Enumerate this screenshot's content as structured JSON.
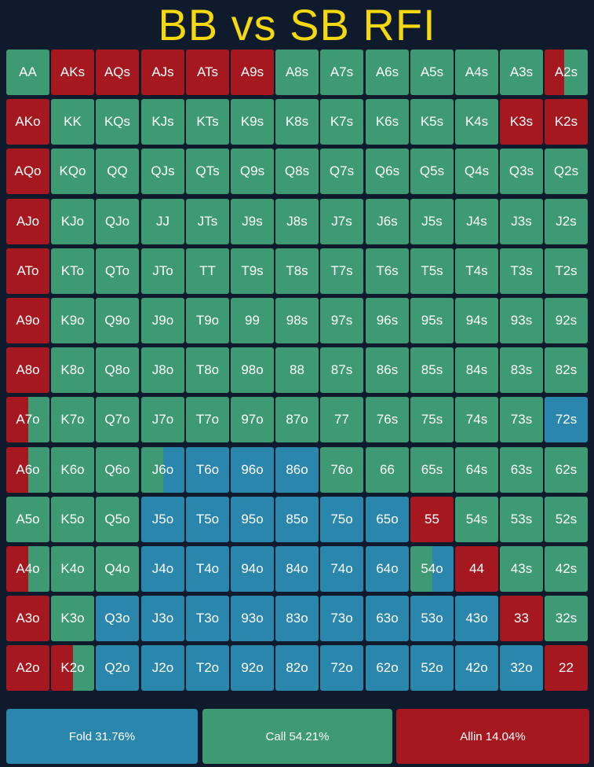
{
  "title": "BB vs SB RFI",
  "colors": {
    "background": "#0f1a2c",
    "title": "#f5d90f",
    "fold": "#2a86ad",
    "call": "#3d9a72",
    "allin": "#a6181f"
  },
  "chart_data": {
    "type": "heatmap",
    "actions": [
      "fold",
      "call",
      "allin"
    ],
    "hands": [
      [
        "AA",
        "AKs",
        "AQs",
        "AJs",
        "ATs",
        "A9s",
        "A8s",
        "A7s",
        "A6s",
        "A5s",
        "A4s",
        "A3s",
        "A2s"
      ],
      [
        "AKo",
        "KK",
        "KQs",
        "KJs",
        "KTs",
        "K9s",
        "K8s",
        "K7s",
        "K6s",
        "K5s",
        "K4s",
        "K3s",
        "K2s"
      ],
      [
        "AQo",
        "KQo",
        "QQ",
        "QJs",
        "QTs",
        "Q9s",
        "Q8s",
        "Q7s",
        "Q6s",
        "Q5s",
        "Q4s",
        "Q3s",
        "Q2s"
      ],
      [
        "AJo",
        "KJo",
        "QJo",
        "JJ",
        "JTs",
        "J9s",
        "J8s",
        "J7s",
        "J6s",
        "J5s",
        "J4s",
        "J3s",
        "J2s"
      ],
      [
        "ATo",
        "KTo",
        "QTo",
        "JTo",
        "TT",
        "T9s",
        "T8s",
        "T7s",
        "T6s",
        "T5s",
        "T4s",
        "T3s",
        "T2s"
      ],
      [
        "A9o",
        "K9o",
        "Q9o",
        "J9o",
        "T9o",
        "99",
        "98s",
        "97s",
        "96s",
        "95s",
        "94s",
        "93s",
        "92s"
      ],
      [
        "A8o",
        "K8o",
        "Q8o",
        "J8o",
        "T8o",
        "98o",
        "88",
        "87s",
        "86s",
        "85s",
        "84s",
        "83s",
        "82s"
      ],
      [
        "A7o",
        "K7o",
        "Q7o",
        "J7o",
        "T7o",
        "97o",
        "87o",
        "77",
        "76s",
        "75s",
        "74s",
        "73s",
        "72s"
      ],
      [
        "A6o",
        "K6o",
        "Q6o",
        "J6o",
        "T6o",
        "96o",
        "86o",
        "76o",
        "66",
        "65s",
        "64s",
        "63s",
        "62s"
      ],
      [
        "A5o",
        "K5o",
        "Q5o",
        "J5o",
        "T5o",
        "95o",
        "85o",
        "75o",
        "65o",
        "55",
        "54s",
        "53s",
        "52s"
      ],
      [
        "A4o",
        "K4o",
        "Q4o",
        "J4o",
        "T4o",
        "94o",
        "84o",
        "74o",
        "64o",
        "54o",
        "44",
        "43s",
        "42s"
      ],
      [
        "A3o",
        "K3o",
        "Q3o",
        "J3o",
        "T3o",
        "93o",
        "83o",
        "73o",
        "63o",
        "53o",
        "43o",
        "33",
        "32s"
      ],
      [
        "A2o",
        "K2o",
        "Q2o",
        "J2o",
        "T2o",
        "92o",
        "82o",
        "72o",
        "62o",
        "52o",
        "42o",
        "32o",
        "22"
      ]
    ],
    "mix_legend": "C = call, A = all-in, F = fold; mixed cells list fractions",
    "grid": [
      [
        "C",
        "A",
        "A",
        "A",
        "A",
        "A",
        "C",
        "C",
        "C",
        "C",
        "C",
        "C",
        {
          "allin": 0.45,
          "call": 0.55
        }
      ],
      [
        "A",
        "C",
        "C",
        "C",
        "C",
        "C",
        "C",
        "C",
        "C",
        "C",
        "C",
        "A",
        "A"
      ],
      [
        "A",
        "C",
        "C",
        "C",
        "C",
        "C",
        "C",
        "C",
        "C",
        "C",
        "C",
        "C",
        "C"
      ],
      [
        "A",
        "C",
        "C",
        "C",
        "C",
        "C",
        "C",
        "C",
        "C",
        "C",
        "C",
        "C",
        "C"
      ],
      [
        "A",
        "C",
        "C",
        "C",
        "C",
        "C",
        "C",
        "C",
        "C",
        "C",
        "C",
        "C",
        "C"
      ],
      [
        "A",
        "C",
        "C",
        "C",
        "C",
        "C",
        "C",
        "C",
        "C",
        "C",
        "C",
        "C",
        "C"
      ],
      [
        "A",
        "C",
        "C",
        "C",
        "C",
        "C",
        "C",
        "C",
        "C",
        "C",
        "C",
        "C",
        "C"
      ],
      [
        {
          "allin": 0.5,
          "call": 0.5
        },
        "C",
        "C",
        "C",
        "C",
        "C",
        "C",
        "C",
        "C",
        "C",
        "C",
        "C",
        "F"
      ],
      [
        {
          "allin": 0.5,
          "call": 0.5
        },
        "C",
        "C",
        {
          "call": 0.5,
          "fold": 0.5
        },
        "F",
        "F",
        "F",
        "C",
        "C",
        "C",
        "C",
        "C",
        "C"
      ],
      [
        "C",
        "C",
        "C",
        "F",
        "F",
        "F",
        "F",
        "F",
        "F",
        "A",
        "C",
        "C",
        "C"
      ],
      [
        {
          "allin": 0.5,
          "call": 0.5
        },
        "C",
        "C",
        "F",
        "F",
        "F",
        "F",
        "F",
        "F",
        {
          "call": 0.5,
          "fold": 0.5
        },
        "A",
        "C",
        "C"
      ],
      [
        "A",
        "C",
        "F",
        "F",
        "F",
        "F",
        "F",
        "F",
        "F",
        "F",
        "F",
        "A",
        "C"
      ],
      [
        "A",
        {
          "allin": 0.5,
          "call": 0.5
        },
        "F",
        "F",
        "F",
        "F",
        "F",
        "F",
        "F",
        "F",
        "F",
        "F",
        "A"
      ]
    ]
  },
  "legend": {
    "fold": "Fold 31.76%",
    "call": "Call 54.21%",
    "allin": "Allin 14.04%"
  }
}
